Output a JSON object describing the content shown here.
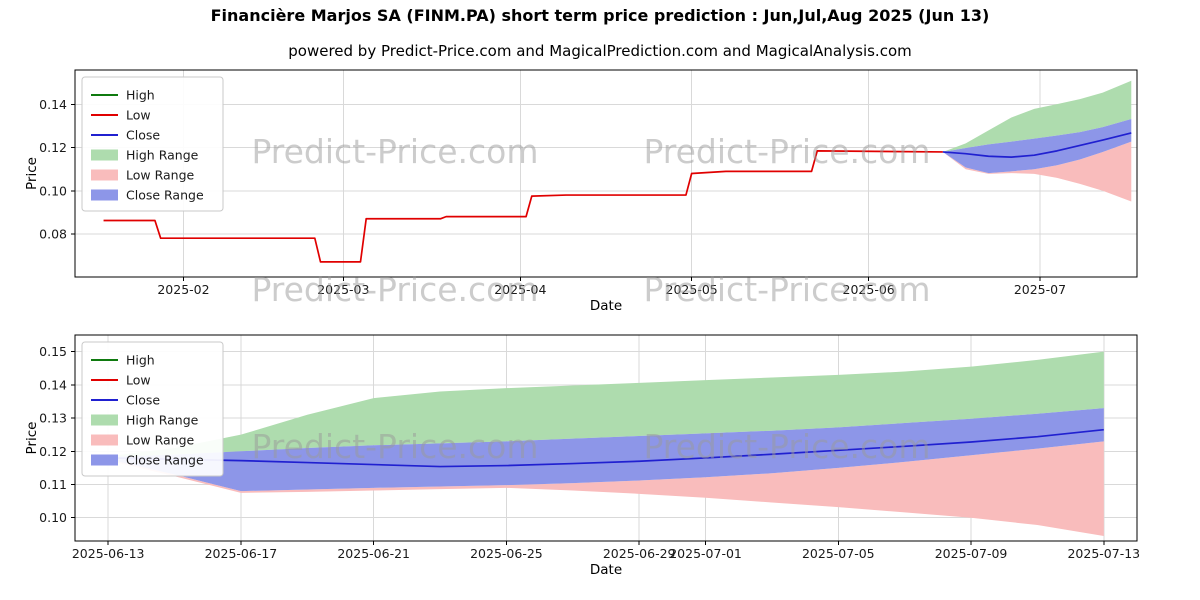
{
  "page": {
    "title": "Financière Marjos SA (FINM.PA) short term price prediction : Jun,Jul,Aug 2025 (Jun 13)",
    "subtitle": "powered by Predict-Price.com and MagicalPrediction.com and MagicalAnalysis.com",
    "watermark": "Predict-Price.com"
  },
  "colors": {
    "high": "#0f7a0f",
    "low": "#e00000",
    "close": "#2020d0",
    "high_range": "#aedcae",
    "low_range": "#f9bcbc",
    "close_range": "#8d96e8",
    "grid": "#d9d9d9",
    "watermark": "#9a9a9a"
  },
  "legend": [
    {
      "key": "high",
      "label": "High",
      "swatch": "line",
      "color_key": "high"
    },
    {
      "key": "low",
      "label": "Low",
      "swatch": "line",
      "color_key": "low"
    },
    {
      "key": "close",
      "label": "Close",
      "swatch": "line",
      "color_key": "close"
    },
    {
      "key": "high-range",
      "label": "High Range",
      "swatch": "fill",
      "color_key": "high_range"
    },
    {
      "key": "low-range",
      "label": "Low Range",
      "swatch": "fill",
      "color_key": "low_range"
    },
    {
      "key": "close-range",
      "label": "Close Range",
      "swatch": "fill",
      "color_key": "close_range"
    }
  ],
  "chart_data": [
    {
      "name": "price-history-and-prediction-chart",
      "type": "line",
      "xlabel": "Date",
      "ylabel": "Price",
      "xlim": [
        "2025-01-13",
        "2025-07-18"
      ],
      "ylim": [
        0.06,
        0.156
      ],
      "grid": true,
      "legend_position": "upper-left",
      "x_ticks": [
        {
          "pos": "2025-02-01",
          "label": "2025-02"
        },
        {
          "pos": "2025-03-01",
          "label": "2025-03"
        },
        {
          "pos": "2025-04-01",
          "label": "2025-04"
        },
        {
          "pos": "2025-05-01",
          "label": "2025-05"
        },
        {
          "pos": "2025-06-01",
          "label": "2025-06"
        },
        {
          "pos": "2025-07-01",
          "label": "2025-07"
        }
      ],
      "y_ticks": [
        {
          "pos": 0.08,
          "label": "0.08"
        },
        {
          "pos": 0.1,
          "label": "0.10"
        },
        {
          "pos": 0.12,
          "label": "0.12"
        },
        {
          "pos": 0.14,
          "label": "0.14"
        }
      ],
      "bands": [
        {
          "name": "high-range",
          "color_key": "high_range",
          "dates": [
            "2025-06-14",
            "2025-06-18",
            "2025-06-22",
            "2025-06-26",
            "2025-06-30",
            "2025-07-04",
            "2025-07-08",
            "2025-07-12",
            "2025-07-17"
          ],
          "top": [
            0.118,
            0.122,
            0.128,
            0.134,
            0.138,
            0.1402,
            0.1425,
            0.1455,
            0.151
          ],
          "bottom": [
            0.118,
            0.1198,
            0.1215,
            0.1228,
            0.1242,
            0.1256,
            0.1272,
            0.1295,
            0.1333
          ]
        },
        {
          "name": "low-range",
          "color_key": "low_range",
          "dates": [
            "2025-06-14",
            "2025-06-18",
            "2025-06-22",
            "2025-06-26",
            "2025-06-30",
            "2025-07-04",
            "2025-07-08",
            "2025-07-12",
            "2025-07-17"
          ],
          "top": [
            0.118,
            0.1108,
            0.1082,
            0.109,
            0.11,
            0.1118,
            0.1145,
            0.118,
            0.1228
          ],
          "bottom": [
            0.118,
            0.11,
            0.1078,
            0.1082,
            0.1078,
            0.106,
            0.1032,
            0.1,
            0.095
          ]
        },
        {
          "name": "close-range",
          "color_key": "close_range",
          "dates": [
            "2025-06-14",
            "2025-06-18",
            "2025-06-22",
            "2025-06-26",
            "2025-06-30",
            "2025-07-04",
            "2025-07-08",
            "2025-07-12",
            "2025-07-17"
          ],
          "top": [
            0.118,
            0.1198,
            0.1215,
            0.1228,
            0.1242,
            0.1256,
            0.1272,
            0.1295,
            0.1333
          ],
          "bottom": [
            0.118,
            0.1108,
            0.1082,
            0.109,
            0.11,
            0.1118,
            0.1145,
            0.118,
            0.1228
          ]
        }
      ],
      "lines": [
        {
          "name": "low",
          "color_key": "low",
          "dates": [
            "2025-01-18",
            "2025-01-27",
            "2025-01-28",
            "2025-02-24",
            "2025-02-25",
            "2025-03-04",
            "2025-03-05",
            "2025-03-18",
            "2025-03-19",
            "2025-04-02",
            "2025-04-03",
            "2025-04-09",
            "2025-04-30",
            "2025-05-01",
            "2025-05-07",
            "2025-05-22",
            "2025-05-23",
            "2025-06-14"
          ],
          "values": [
            0.0862,
            0.0862,
            0.078,
            0.078,
            0.067,
            0.067,
            0.087,
            0.087,
            0.088,
            0.088,
            0.0975,
            0.098,
            0.098,
            0.108,
            0.109,
            0.109,
            0.1185,
            0.118
          ]
        },
        {
          "name": "close",
          "color_key": "close",
          "dates": [
            "2025-06-14",
            "2025-06-18",
            "2025-06-22",
            "2025-06-26",
            "2025-06-30",
            "2025-07-04",
            "2025-07-08",
            "2025-07-12",
            "2025-07-17"
          ],
          "values": [
            0.118,
            0.1172,
            0.116,
            0.1156,
            0.1165,
            0.1185,
            0.121,
            0.1235,
            0.1268
          ]
        }
      ]
    },
    {
      "name": "prediction-zoom-chart",
      "type": "line",
      "xlabel": "Date",
      "ylabel": "Price",
      "xlim": [
        "2025-06-12",
        "2025-07-14"
      ],
      "ylim": [
        0.093,
        0.155
      ],
      "grid": true,
      "legend_position": "upper-left",
      "x_ticks": [
        {
          "pos": "2025-06-13",
          "label": "2025-06-13"
        },
        {
          "pos": "2025-06-17",
          "label": "2025-06-17"
        },
        {
          "pos": "2025-06-21",
          "label": "2025-06-21"
        },
        {
          "pos": "2025-06-25",
          "label": "2025-06-25"
        },
        {
          "pos": "2025-06-29",
          "label": "2025-06-29"
        },
        {
          "pos": "2025-07-01",
          "label": "2025-07-01"
        },
        {
          "pos": "2025-07-05",
          "label": "2025-07-05"
        },
        {
          "pos": "2025-07-09",
          "label": "2025-07-09"
        },
        {
          "pos": "2025-07-13",
          "label": "2025-07-13"
        }
      ],
      "y_ticks": [
        {
          "pos": 0.1,
          "label": "0.10"
        },
        {
          "pos": 0.11,
          "label": "0.11"
        },
        {
          "pos": 0.12,
          "label": "0.12"
        },
        {
          "pos": 0.13,
          "label": "0.13"
        },
        {
          "pos": 0.14,
          "label": "0.14"
        },
        {
          "pos": 0.15,
          "label": "0.15"
        }
      ],
      "bands": [
        {
          "name": "high-range",
          "color_key": "high_range",
          "dates": [
            "2025-06-13",
            "2025-06-15",
            "2025-06-17",
            "2025-06-19",
            "2025-06-21",
            "2025-06-23",
            "2025-06-25",
            "2025-06-27",
            "2025-06-29",
            "2025-07-01",
            "2025-07-03",
            "2025-07-05",
            "2025-07-07",
            "2025-07-09",
            "2025-07-11",
            "2025-07-13"
          ],
          "top": [
            0.1185,
            0.121,
            0.125,
            0.131,
            0.136,
            0.138,
            0.139,
            0.1398,
            0.1406,
            0.1414,
            0.1422,
            0.143,
            0.144,
            0.1455,
            0.1475,
            0.15
          ],
          "bottom": [
            0.1183,
            0.119,
            0.12,
            0.121,
            0.1218,
            0.1224,
            0.123,
            0.1238,
            0.1246,
            0.1254,
            0.1262,
            0.1272,
            0.1285,
            0.1298,
            0.1313,
            0.133
          ]
        },
        {
          "name": "low-range",
          "color_key": "low_range",
          "dates": [
            "2025-06-13",
            "2025-06-15",
            "2025-06-17",
            "2025-06-19",
            "2025-06-21",
            "2025-06-23",
            "2025-06-25",
            "2025-06-27",
            "2025-06-29",
            "2025-07-01",
            "2025-07-03",
            "2025-07-05",
            "2025-07-07",
            "2025-07-09",
            "2025-07-11",
            "2025-07-13"
          ],
          "top": [
            0.1176,
            0.113,
            0.108,
            0.1085,
            0.109,
            0.1094,
            0.1098,
            0.1104,
            0.1112,
            0.1122,
            0.1134,
            0.115,
            0.1168,
            0.1188,
            0.1208,
            0.123
          ],
          "bottom": [
            0.1172,
            0.1125,
            0.1075,
            0.1078,
            0.1082,
            0.1086,
            0.109,
            0.1082,
            0.1072,
            0.106,
            0.1046,
            0.1032,
            0.1016,
            0.1,
            0.0978,
            0.0945
          ]
        },
        {
          "name": "close-range",
          "color_key": "close_range",
          "dates": [
            "2025-06-13",
            "2025-06-15",
            "2025-06-17",
            "2025-06-19",
            "2025-06-21",
            "2025-06-23",
            "2025-06-25",
            "2025-06-27",
            "2025-06-29",
            "2025-07-01",
            "2025-07-03",
            "2025-07-05",
            "2025-07-07",
            "2025-07-09",
            "2025-07-11",
            "2025-07-13"
          ],
          "top": [
            0.1183,
            0.119,
            0.12,
            0.121,
            0.1218,
            0.1224,
            0.123,
            0.1238,
            0.1246,
            0.1254,
            0.1262,
            0.1272,
            0.1285,
            0.1298,
            0.1313,
            0.133
          ],
          "bottom": [
            0.1176,
            0.113,
            0.108,
            0.1085,
            0.109,
            0.1094,
            0.1098,
            0.1104,
            0.1112,
            0.1122,
            0.1134,
            0.115,
            0.1168,
            0.1188,
            0.1208,
            0.123
          ]
        }
      ],
      "lines": [
        {
          "name": "close",
          "color_key": "close",
          "dates": [
            "2025-06-13",
            "2025-06-15",
            "2025-06-17",
            "2025-06-19",
            "2025-06-21",
            "2025-06-23",
            "2025-06-25",
            "2025-06-27",
            "2025-06-29",
            "2025-07-01",
            "2025-07-03",
            "2025-07-05",
            "2025-07-07",
            "2025-07-09",
            "2025-07-11",
            "2025-07-13"
          ],
          "values": [
            0.118,
            0.1176,
            0.1172,
            0.1166,
            0.116,
            0.1154,
            0.1157,
            0.1163,
            0.117,
            0.118,
            0.1191,
            0.1203,
            0.1215,
            0.1228,
            0.1244,
            0.1265
          ]
        }
      ]
    }
  ]
}
